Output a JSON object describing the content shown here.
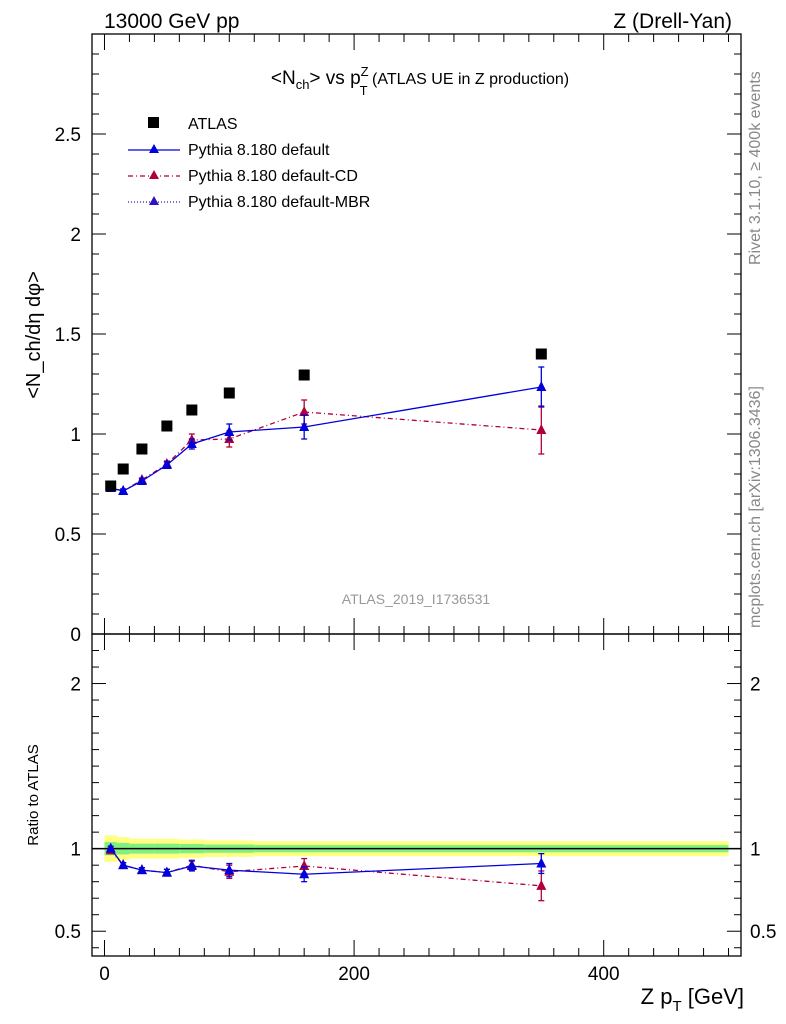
{
  "header": {
    "left": "13000 GeV pp",
    "right": "Z (Drell-Yan)"
  },
  "side_text": {
    "top": "Rivet 3.1.10, ≥ 400k events",
    "bottom": "mcplots.cern.ch [arXiv:1306.3436]"
  },
  "watermark": "ATLAS_2019_I1736531",
  "colors": {
    "data": "#000000",
    "default": "#0000dd",
    "cd": "#b0003a",
    "mbr": "#3010c0",
    "band_yellow": "#ffff80",
    "band_green": "#80f080"
  },
  "chart_data": [
    {
      "type": "scatter",
      "panel": "main",
      "title_parts": {
        "a": "<N",
        "a_sub": "ch",
        "b": "> vs p",
        "b_sup": "Z",
        "b_sub": "T",
        "c": " (ATLAS UE in Z production)"
      },
      "ylabel": "<N_ch/dη dφ>",
      "xlim": [
        -10,
        510
      ],
      "ylim": [
        0,
        3.0
      ],
      "y_ticks": [
        "0",
        "0.5",
        "1",
        "1.5",
        "2",
        "2.5"
      ],
      "legend_placement": "top-left",
      "x": [
        5,
        15,
        30,
        50,
        70,
        100,
        160,
        350
      ],
      "series": [
        {
          "name": "ATLAS",
          "marker": "square",
          "values": [
            0.74,
            0.825,
            0.925,
            1.04,
            1.12,
            1.205,
            1.295,
            1.4
          ]
        },
        {
          "name": "Pythia 8.180 default",
          "marker": "triangle",
          "line": "solid",
          "values": [
            0.73,
            0.715,
            0.765,
            0.845,
            0.95,
            1.01,
            1.035,
            1.235
          ],
          "err": [
            0.01,
            0.01,
            0.01,
            0.015,
            0.025,
            0.04,
            0.06,
            0.1
          ]
        },
        {
          "name": "Pythia 8.180 default-CD",
          "marker": "triangle",
          "line": "dashdot",
          "values": [
            0.735,
            0.715,
            0.77,
            0.85,
            0.97,
            0.975,
            1.11,
            1.02
          ],
          "err": [
            0.01,
            0.01,
            0.01,
            0.015,
            0.03,
            0.04,
            0.06,
            0.12
          ]
        },
        {
          "name": "Pythia 8.180 default-MBR",
          "marker": "triangle",
          "line": "dotted",
          "values": [],
          "err": []
        }
      ]
    },
    {
      "type": "scatter",
      "panel": "ratio",
      "ylabel": "Ratio to ATLAS",
      "xlabel_parts": {
        "a": "Z p",
        "sub": "T",
        "b": " [GeV]"
      },
      "xlim": [
        -10,
        510
      ],
      "ylim": [
        0.35,
        2.3
      ],
      "y_ticks": [
        "0.5",
        "1",
        "2"
      ],
      "x_ticks": [
        "0",
        "200",
        "400"
      ],
      "x": [
        5,
        15,
        30,
        50,
        70,
        100,
        160,
        350
      ],
      "band_edges": [
        0,
        10,
        20,
        40,
        60,
        80,
        120,
        500
      ],
      "band_yellow": [
        0.08,
        0.07,
        0.06,
        0.06,
        0.055,
        0.05,
        0.045,
        0.045
      ],
      "band_green": [
        0.04,
        0.035,
        0.03,
        0.03,
        0.028,
        0.025,
        0.022,
        0.022
      ],
      "series": [
        {
          "name": "Pythia 8.180 default",
          "values": [
            1.0,
            0.9,
            0.87,
            0.855,
            0.895,
            0.87,
            0.845,
            0.91
          ],
          "err": [
            0.015,
            0.015,
            0.015,
            0.02,
            0.03,
            0.04,
            0.045,
            0.06
          ]
        },
        {
          "name": "Pythia 8.180 default-CD",
          "values": [
            0.99,
            0.9,
            0.87,
            0.855,
            0.9,
            0.86,
            0.895,
            0.775
          ],
          "err": [
            0.015,
            0.015,
            0.015,
            0.02,
            0.03,
            0.04,
            0.045,
            0.09
          ]
        }
      ]
    }
  ]
}
